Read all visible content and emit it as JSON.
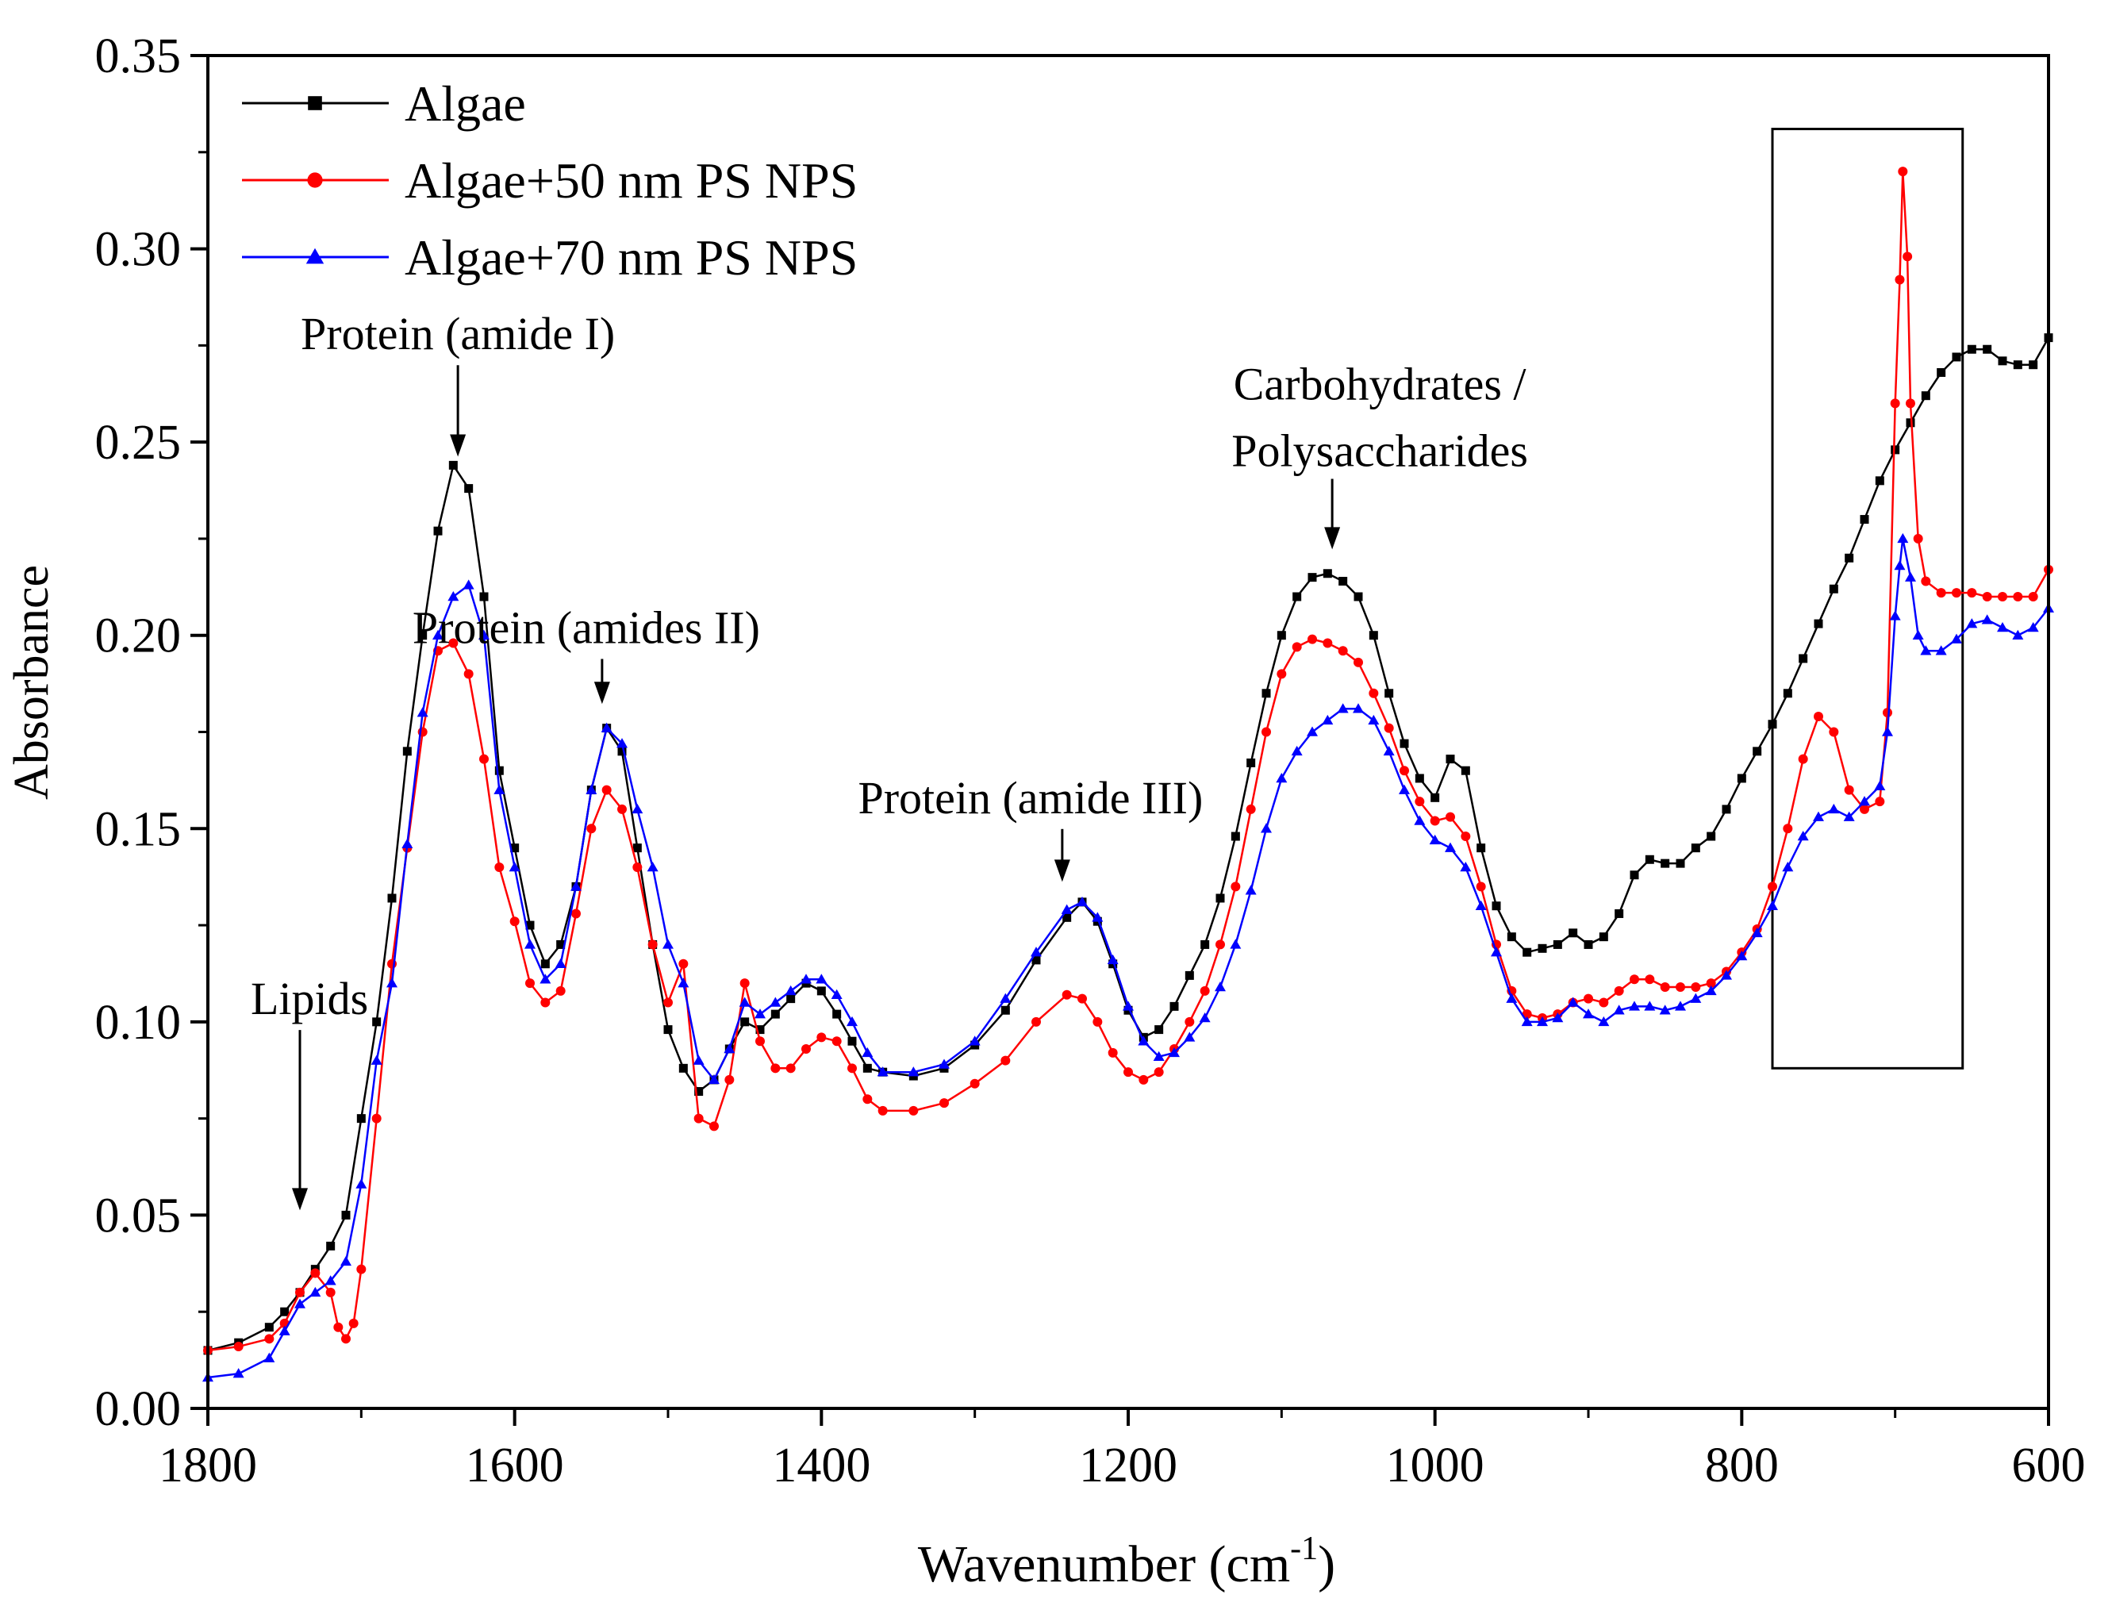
{
  "chart_data": {
    "type": "line",
    "xlabel": "Wavenumber (cm",
    "xlabel_sup": "-1",
    "xlabel_close": ")",
    "ylabel": "Absorbance",
    "xlim": [
      1800,
      600
    ],
    "ylim": [
      0.0,
      0.35
    ],
    "x_ticks": [
      1800,
      1600,
      1400,
      1200,
      1000,
      800,
      600
    ],
    "x_tick_labels": [
      "1800",
      "1600",
      "1400",
      "1200",
      "1000",
      "800",
      "600"
    ],
    "y_ticks": [
      0.0,
      0.05,
      0.1,
      0.15,
      0.2,
      0.25,
      0.3,
      0.35
    ],
    "y_tick_labels": [
      "0.00",
      "0.05",
      "0.10",
      "0.15",
      "0.20",
      "0.25",
      "0.30",
      "0.35"
    ],
    "grid": false,
    "legend_position": "top-left",
    "series": [
      {
        "name": "Algae",
        "color": "#000000",
        "marker": "square",
        "x": [
          1800,
          1780,
          1760,
          1750,
          1740,
          1730,
          1720,
          1710,
          1700,
          1690,
          1680,
          1670,
          1660,
          1650,
          1640,
          1630,
          1620,
          1610,
          1600,
          1590,
          1580,
          1570,
          1560,
          1550,
          1540,
          1530,
          1520,
          1510,
          1500,
          1490,
          1480,
          1470,
          1460,
          1450,
          1440,
          1430,
          1420,
          1410,
          1400,
          1390,
          1380,
          1370,
          1360,
          1340,
          1320,
          1300,
          1280,
          1260,
          1240,
          1230,
          1220,
          1210,
          1200,
          1190,
          1180,
          1170,
          1160,
          1150,
          1140,
          1130,
          1120,
          1110,
          1100,
          1090,
          1080,
          1070,
          1060,
          1050,
          1040,
          1030,
          1020,
          1010,
          1000,
          990,
          980,
          970,
          960,
          950,
          940,
          930,
          920,
          910,
          900,
          890,
          880,
          870,
          860,
          850,
          840,
          830,
          820,
          810,
          800,
          790,
          780,
          770,
          760,
          750,
          740,
          730,
          720,
          710,
          700,
          690,
          680,
          670,
          660,
          650,
          640,
          630,
          620,
          610,
          600
        ],
        "y": [
          0.015,
          0.017,
          0.021,
          0.025,
          0.03,
          0.036,
          0.042,
          0.05,
          0.075,
          0.1,
          0.132,
          0.17,
          0.2,
          0.227,
          0.244,
          0.238,
          0.21,
          0.165,
          0.145,
          0.125,
          0.115,
          0.12,
          0.135,
          0.16,
          0.176,
          0.17,
          0.145,
          0.12,
          0.098,
          0.088,
          0.082,
          0.085,
          0.093,
          0.1,
          0.098,
          0.102,
          0.106,
          0.11,
          0.108,
          0.102,
          0.095,
          0.088,
          0.087,
          0.086,
          0.088,
          0.094,
          0.103,
          0.116,
          0.127,
          0.131,
          0.126,
          0.115,
          0.103,
          0.096,
          0.098,
          0.104,
          0.112,
          0.12,
          0.132,
          0.148,
          0.167,
          0.185,
          0.2,
          0.21,
          0.215,
          0.216,
          0.214,
          0.21,
          0.2,
          0.185,
          0.172,
          0.163,
          0.158,
          0.168,
          0.165,
          0.145,
          0.13,
          0.122,
          0.118,
          0.119,
          0.12,
          0.123,
          0.12,
          0.122,
          0.128,
          0.138,
          0.142,
          0.141,
          0.141,
          0.145,
          0.148,
          0.155,
          0.163,
          0.17,
          0.177,
          0.185,
          0.194,
          0.203,
          0.212,
          0.22,
          0.23,
          0.24,
          0.248,
          0.255,
          0.262,
          0.268,
          0.272,
          0.274,
          0.274,
          0.271,
          0.27,
          0.27,
          0.277
        ]
      },
      {
        "name": "Algae+50 nm PS NPS",
        "color": "#ff0000",
        "marker": "circle",
        "x": [
          1800,
          1780,
          1760,
          1750,
          1740,
          1730,
          1720,
          1715,
          1710,
          1705,
          1700,
          1690,
          1680,
          1670,
          1660,
          1650,
          1640,
          1630,
          1620,
          1610,
          1600,
          1590,
          1580,
          1570,
          1560,
          1550,
          1540,
          1530,
          1520,
          1510,
          1500,
          1490,
          1480,
          1470,
          1460,
          1450,
          1440,
          1430,
          1420,
          1410,
          1400,
          1390,
          1380,
          1370,
          1360,
          1340,
          1320,
          1300,
          1280,
          1260,
          1240,
          1230,
          1220,
          1210,
          1200,
          1190,
          1180,
          1170,
          1160,
          1150,
          1140,
          1130,
          1120,
          1110,
          1100,
          1090,
          1080,
          1070,
          1060,
          1050,
          1040,
          1030,
          1020,
          1010,
          1000,
          990,
          980,
          970,
          960,
          950,
          940,
          930,
          920,
          910,
          900,
          890,
          880,
          870,
          860,
          850,
          840,
          830,
          820,
          810,
          800,
          790,
          780,
          770,
          760,
          750,
          740,
          730,
          720,
          710,
          705,
          700,
          697,
          695,
          692,
          690,
          685,
          680,
          670,
          660,
          650,
          640,
          630,
          620,
          610,
          600
        ],
        "y": [
          0.015,
          0.016,
          0.018,
          0.022,
          0.03,
          0.035,
          0.03,
          0.021,
          0.018,
          0.022,
          0.036,
          0.075,
          0.115,
          0.145,
          0.175,
          0.196,
          0.198,
          0.19,
          0.168,
          0.14,
          0.126,
          0.11,
          0.105,
          0.108,
          0.128,
          0.15,
          0.16,
          0.155,
          0.14,
          0.12,
          0.105,
          0.115,
          0.075,
          0.073,
          0.085,
          0.11,
          0.095,
          0.088,
          0.088,
          0.093,
          0.096,
          0.095,
          0.088,
          0.08,
          0.077,
          0.077,
          0.079,
          0.084,
          0.09,
          0.1,
          0.107,
          0.106,
          0.1,
          0.092,
          0.087,
          0.085,
          0.087,
          0.093,
          0.1,
          0.108,
          0.12,
          0.135,
          0.155,
          0.175,
          0.19,
          0.197,
          0.199,
          0.198,
          0.196,
          0.193,
          0.185,
          0.176,
          0.165,
          0.157,
          0.152,
          0.153,
          0.148,
          0.135,
          0.12,
          0.108,
          0.102,
          0.101,
          0.102,
          0.105,
          0.106,
          0.105,
          0.108,
          0.111,
          0.111,
          0.109,
          0.109,
          0.109,
          0.11,
          0.113,
          0.118,
          0.124,
          0.135,
          0.15,
          0.168,
          0.179,
          0.175,
          0.16,
          0.155,
          0.157,
          0.18,
          0.26,
          0.292,
          0.32,
          0.298,
          0.26,
          0.225,
          0.214,
          0.211,
          0.211,
          0.211,
          0.21,
          0.21,
          0.21,
          0.21,
          0.217
        ]
      },
      {
        "name": "Algae+70 nm PS NPS",
        "color": "#0000ff",
        "marker": "triangle",
        "x": [
          1800,
          1780,
          1760,
          1750,
          1740,
          1730,
          1720,
          1710,
          1700,
          1690,
          1680,
          1670,
          1660,
          1650,
          1640,
          1630,
          1620,
          1610,
          1600,
          1590,
          1580,
          1570,
          1560,
          1550,
          1540,
          1530,
          1520,
          1510,
          1500,
          1490,
          1480,
          1470,
          1460,
          1450,
          1440,
          1430,
          1420,
          1410,
          1400,
          1390,
          1380,
          1370,
          1360,
          1340,
          1320,
          1300,
          1280,
          1260,
          1240,
          1230,
          1220,
          1210,
          1200,
          1190,
          1180,
          1170,
          1160,
          1150,
          1140,
          1130,
          1120,
          1110,
          1100,
          1090,
          1080,
          1070,
          1060,
          1050,
          1040,
          1030,
          1020,
          1010,
          1000,
          990,
          980,
          970,
          960,
          950,
          940,
          930,
          920,
          910,
          900,
          890,
          880,
          870,
          860,
          850,
          840,
          830,
          820,
          810,
          800,
          790,
          780,
          770,
          760,
          750,
          740,
          730,
          720,
          710,
          705,
          700,
          697,
          695,
          690,
          685,
          680,
          670,
          660,
          650,
          640,
          630,
          620,
          610,
          600
        ],
        "y": [
          0.008,
          0.009,
          0.013,
          0.02,
          0.027,
          0.03,
          0.033,
          0.038,
          0.058,
          0.09,
          0.11,
          0.146,
          0.18,
          0.2,
          0.21,
          0.213,
          0.2,
          0.16,
          0.14,
          0.12,
          0.111,
          0.115,
          0.135,
          0.16,
          0.176,
          0.172,
          0.155,
          0.14,
          0.12,
          0.11,
          0.09,
          0.085,
          0.093,
          0.105,
          0.102,
          0.105,
          0.108,
          0.111,
          0.111,
          0.107,
          0.1,
          0.092,
          0.087,
          0.087,
          0.089,
          0.095,
          0.106,
          0.118,
          0.129,
          0.131,
          0.127,
          0.116,
          0.104,
          0.095,
          0.091,
          0.092,
          0.096,
          0.101,
          0.109,
          0.12,
          0.134,
          0.15,
          0.163,
          0.17,
          0.175,
          0.178,
          0.181,
          0.181,
          0.178,
          0.17,
          0.16,
          0.152,
          0.147,
          0.145,
          0.14,
          0.13,
          0.118,
          0.106,
          0.1,
          0.1,
          0.101,
          0.105,
          0.102,
          0.1,
          0.103,
          0.104,
          0.104,
          0.103,
          0.104,
          0.106,
          0.108,
          0.112,
          0.117,
          0.123,
          0.13,
          0.14,
          0.148,
          0.153,
          0.155,
          0.153,
          0.157,
          0.161,
          0.175,
          0.205,
          0.218,
          0.225,
          0.215,
          0.2,
          0.196,
          0.196,
          0.199,
          0.203,
          0.204,
          0.202,
          0.2,
          0.202,
          0.207
        ]
      }
    ],
    "annotations": [
      {
        "text": "Lipids",
        "x": 1740,
        "arrow_y": 0.05
      },
      {
        "text": "Protein (amide I)",
        "x": 1637,
        "arrow_y": 0.245
      },
      {
        "text": "Protein (amides II)",
        "x": 1543,
        "arrow_y": 0.181
      },
      {
        "text": "Protein (amide III)",
        "x": 1243,
        "arrow_y": 0.135
      },
      {
        "text": "Carbohydrates /",
        "text2": "Polysaccharides",
        "x": 1067,
        "arrow_y": 0.221
      }
    ],
    "highlight_box": {
      "x_from": 780,
      "x_to": 656,
      "y_from": 0.088,
      "y_to": 0.331
    }
  }
}
